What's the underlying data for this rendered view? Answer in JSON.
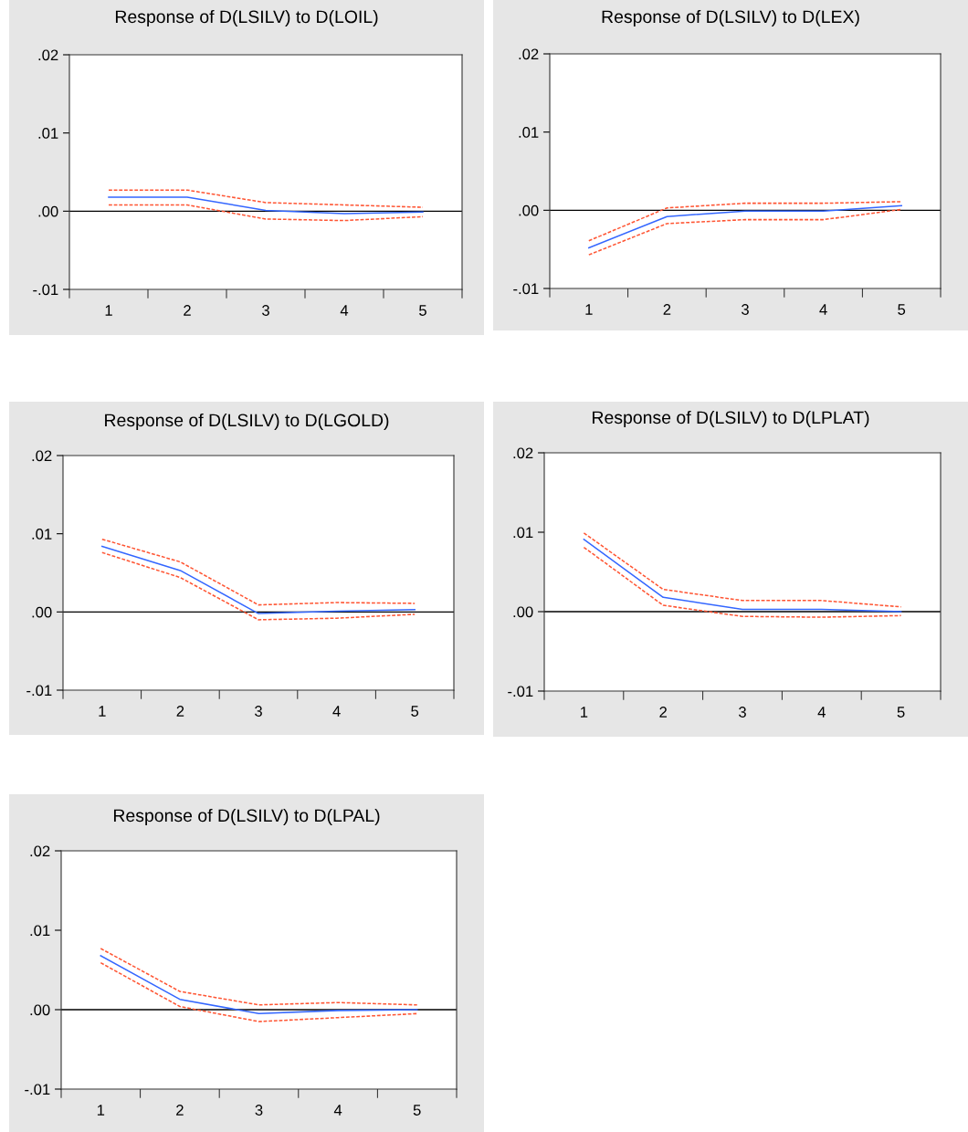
{
  "chart_data": [
    {
      "type": "line",
      "title": "Response of D(LSILV) to D(LOIL)",
      "categories": [
        "1",
        "2",
        "3",
        "4",
        "5"
      ],
      "ylim": [
        -0.01,
        0.02
      ],
      "yticks": [
        {
          "value": -0.01,
          "label": "-.01"
        },
        {
          "value": 0,
          "label": ".00"
        },
        {
          "value": 0.01,
          "label": ".01"
        },
        {
          "value": 0.02,
          "label": ".02"
        }
      ],
      "ref_lines": [
        {
          "axis": "y",
          "value": 0,
          "color": "#000000"
        }
      ],
      "series": [
        {
          "color": "#3366ff",
          "line_style": "solid",
          "values": [
            0.0018,
            0.0018,
            0.0001,
            -0.0003,
            -0.0001
          ]
        },
        {
          "color": "#ff5533",
          "line_style": "dashed",
          "values": [
            0.0027,
            0.0027,
            0.0011,
            0.0008,
            0.0005
          ]
        },
        {
          "color": "#ff5533",
          "line_style": "dashed",
          "values": [
            0.0008,
            0.0008,
            -0.001,
            -0.0012,
            -0.0007
          ]
        }
      ]
    },
    {
      "type": "line",
      "title": "Response of D(LSILV) to D(LEX)",
      "categories": [
        "1",
        "2",
        "3",
        "4",
        "5"
      ],
      "ylim": [
        -0.01,
        0.02
      ],
      "yticks": [
        {
          "value": -0.01,
          "label": "-.01"
        },
        {
          "value": 0,
          "label": ".00"
        },
        {
          "value": 0.01,
          "label": ".01"
        },
        {
          "value": 0.02,
          "label": ".02"
        }
      ],
      "ref_lines": [
        {
          "axis": "y",
          "value": 0,
          "color": "#000000"
        }
      ],
      "series": [
        {
          "color": "#3366ff",
          "line_style": "solid",
          "values": [
            -0.0048,
            -0.0008,
            -0.0001,
            -0.0001,
            0.0006
          ]
        },
        {
          "color": "#ff5533",
          "line_style": "dashed",
          "values": [
            -0.0039,
            0.0003,
            0.0009,
            0.0009,
            0.0011
          ]
        },
        {
          "color": "#ff5533",
          "line_style": "dashed",
          "values": [
            -0.0057,
            -0.0017,
            -0.0012,
            -0.0012,
            0.0001
          ]
        }
      ]
    },
    {
      "type": "line",
      "title": "Response of D(LSILV) to D(LGOLD)",
      "categories": [
        "1",
        "2",
        "3",
        "4",
        "5"
      ],
      "ylim": [
        -0.01,
        0.02
      ],
      "yticks": [
        {
          "value": -0.01,
          "label": "-.01"
        },
        {
          "value": 0,
          "label": ".00"
        },
        {
          "value": 0.01,
          "label": ".01"
        },
        {
          "value": 0.02,
          "label": ".02"
        }
      ],
      "ref_lines": [
        {
          "axis": "y",
          "value": 0,
          "color": "#000000"
        }
      ],
      "series": [
        {
          "color": "#3366ff",
          "line_style": "solid",
          "values": [
            0.0084,
            0.0053,
            -0.0002,
            0.0001,
            0.0003
          ]
        },
        {
          "color": "#ff5533",
          "line_style": "dashed",
          "values": [
            0.0093,
            0.0064,
            0.0009,
            0.0012,
            0.0011
          ]
        },
        {
          "color": "#ff5533",
          "line_style": "dashed",
          "values": [
            0.0076,
            0.0044,
            -0.001,
            -0.0008,
            -0.0003
          ]
        }
      ]
    },
    {
      "type": "line",
      "title": "Response of D(LSILV) to D(LPLAT)",
      "categories": [
        "1",
        "2",
        "3",
        "4",
        "5"
      ],
      "ylim": [
        -0.01,
        0.02
      ],
      "yticks": [
        {
          "value": -0.01,
          "label": "-.01"
        },
        {
          "value": 0,
          "label": ".00"
        },
        {
          "value": 0.01,
          "label": ".01"
        },
        {
          "value": 0.02,
          "label": ".02"
        }
      ],
      "ref_lines": [
        {
          "axis": "y",
          "value": 0,
          "color": "#000000"
        }
      ],
      "series": [
        {
          "color": "#3366ff",
          "line_style": "solid",
          "values": [
            0.0091,
            0.0018,
            0.0003,
            0.0003,
            0.0
          ]
        },
        {
          "color": "#ff5533",
          "line_style": "dashed",
          "values": [
            0.0099,
            0.0028,
            0.0014,
            0.0014,
            0.0006
          ]
        },
        {
          "color": "#ff5533",
          "line_style": "dashed",
          "values": [
            0.0081,
            0.0008,
            -0.0006,
            -0.0007,
            -0.0005
          ]
        }
      ]
    },
    {
      "type": "line",
      "title": "Response of D(LSILV) to D(LPAL)",
      "categories": [
        "1",
        "2",
        "3",
        "4",
        "5"
      ],
      "ylim": [
        -0.01,
        0.02
      ],
      "yticks": [
        {
          "value": -0.01,
          "label": "-.01"
        },
        {
          "value": 0,
          "label": ".00"
        },
        {
          "value": 0.01,
          "label": ".01"
        },
        {
          "value": 0.02,
          "label": ".02"
        }
      ],
      "ref_lines": [
        {
          "axis": "y",
          "value": 0,
          "color": "#000000"
        }
      ],
      "series": [
        {
          "color": "#3366ff",
          "line_style": "solid",
          "values": [
            0.0068,
            0.0013,
            -0.0005,
            -0.0001,
            0.0
          ]
        },
        {
          "color": "#ff5533",
          "line_style": "dashed",
          "values": [
            0.0077,
            0.0023,
            0.0006,
            0.0009,
            0.0006
          ]
        },
        {
          "color": "#ff5533",
          "line_style": "dashed",
          "values": [
            0.0059,
            0.0004,
            -0.0015,
            -0.001,
            -0.0005
          ]
        }
      ]
    }
  ]
}
